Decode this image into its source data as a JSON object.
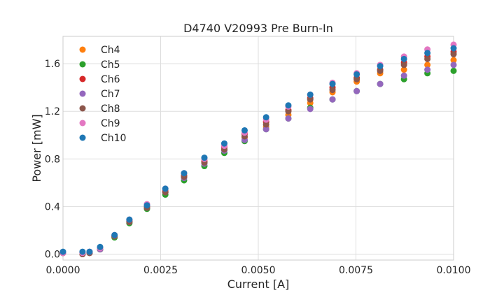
{
  "chart_data": {
    "type": "scatter",
    "title": "D4740 V20993 Pre Burn-In",
    "xlabel": "Current [A]",
    "ylabel": "Power [mW]",
    "xlim": [
      0.0,
      0.01
    ],
    "ylim": [
      -0.05,
      1.83
    ],
    "x_ticks": [
      "0.0000",
      "0.0025",
      "0.0050",
      "0.0075",
      "0.0100"
    ],
    "y_ticks": [
      "0.0",
      "0.4",
      "0.8",
      "1.2",
      "1.6"
    ],
    "x_tick_values": [
      0.0,
      0.0025,
      0.005,
      0.0075,
      0.01
    ],
    "y_tick_values": [
      0.0,
      0.4,
      0.8,
      1.2,
      1.6
    ],
    "grid": true,
    "legend_position": "upper-left",
    "x": [
      0.0,
      0.0005,
      0.00068,
      0.00095,
      0.00132,
      0.0017,
      0.00215,
      0.00262,
      0.0031,
      0.00362,
      0.00413,
      0.00465,
      0.0052,
      0.00577,
      0.00633,
      0.0069,
      0.00752,
      0.00812,
      0.00873,
      0.00933,
      0.01
    ],
    "series": [
      {
        "name": "Ch4",
        "color": "#ff7f0e",
        "values": [
          0.01,
          0.0,
          0.01,
          0.04,
          0.15,
          0.27,
          0.39,
          0.52,
          0.65,
          0.77,
          0.88,
          0.98,
          1.07,
          1.17,
          1.27,
          1.36,
          1.45,
          1.52,
          1.55,
          1.59,
          1.63
        ]
      },
      {
        "name": "Ch5",
        "color": "#2ca02c",
        "values": [
          0.01,
          0.0,
          0.01,
          0.04,
          0.14,
          0.26,
          0.38,
          0.5,
          0.62,
          0.74,
          0.85,
          0.95,
          1.05,
          1.14,
          1.23,
          1.3,
          1.37,
          1.43,
          1.47,
          1.52,
          1.54
        ]
      },
      {
        "name": "Ch6",
        "color": "#d62728",
        "values": [
          0.01,
          0.0,
          0.01,
          0.05,
          0.15,
          0.28,
          0.4,
          0.53,
          0.66,
          0.78,
          0.9,
          1.01,
          1.11,
          1.21,
          1.31,
          1.4,
          1.48,
          1.55,
          1.61,
          1.66,
          1.7
        ]
      },
      {
        "name": "Ch7",
        "color": "#9467bd",
        "values": [
          0.01,
          0.01,
          0.01,
          0.04,
          0.15,
          0.27,
          0.39,
          0.52,
          0.64,
          0.76,
          0.87,
          0.96,
          1.05,
          1.14,
          1.22,
          1.3,
          1.37,
          1.43,
          1.5,
          1.55,
          1.59
        ]
      },
      {
        "name": "Ch8",
        "color": "#8c564b",
        "values": [
          0.01,
          0.0,
          0.01,
          0.05,
          0.15,
          0.27,
          0.39,
          0.52,
          0.65,
          0.77,
          0.88,
          0.99,
          1.09,
          1.2,
          1.3,
          1.38,
          1.47,
          1.54,
          1.59,
          1.64,
          1.68
        ]
      },
      {
        "name": "Ch9",
        "color": "#e377c2",
        "values": [
          0.01,
          0.01,
          0.02,
          0.05,
          0.16,
          0.29,
          0.42,
          0.55,
          0.68,
          0.8,
          0.91,
          1.02,
          1.13,
          1.24,
          1.34,
          1.44,
          1.52,
          1.59,
          1.66,
          1.72,
          1.76
        ]
      },
      {
        "name": "Ch10",
        "color": "#1f77b4",
        "values": [
          0.02,
          0.02,
          0.02,
          0.06,
          0.16,
          0.29,
          0.41,
          0.55,
          0.68,
          0.81,
          0.93,
          1.04,
          1.15,
          1.25,
          1.34,
          1.43,
          1.51,
          1.58,
          1.64,
          1.69,
          1.73
        ]
      }
    ]
  }
}
